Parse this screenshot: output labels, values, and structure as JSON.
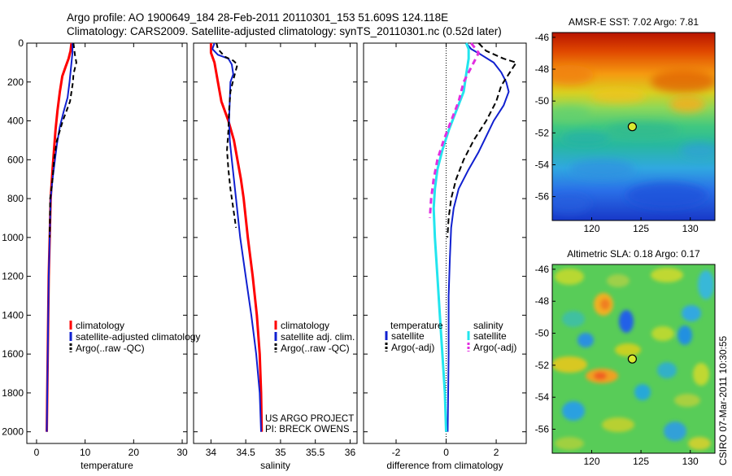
{
  "header": {
    "line1": "Argo profile: AO 1900649_184 28-Feb-2011 20110301_153 51.609S 124.118E",
    "line2": "Climatology: CARS2009. Satellite-adjusted climatology: synTS_20110301.nc (0.52d later)"
  },
  "credit": {
    "line1": "US ARGO PROJECT",
    "line2": "PI: BRECK OWENS"
  },
  "stamp": "CSIRO 07-Mar-2011 10:30:55",
  "colors": {
    "red": "#ff0000",
    "blue": "#1020d0",
    "black": "#000000",
    "cyan": "#22e5ee",
    "magenta": "#e22ee0"
  },
  "chart_data": [
    {
      "type": "line",
      "name": "temperature-profile",
      "xlabel": "temperature",
      "xlim": [
        -2,
        31
      ],
      "xticks": [
        0,
        10,
        20,
        30
      ],
      "ylim": [
        0,
        2060
      ],
      "yreversed": true,
      "yticks": [
        0,
        200,
        400,
        600,
        800,
        1000,
        1200,
        1400,
        1600,
        1800,
        2000
      ],
      "legend": [
        "climatology",
        "satellite-adjusted climatology",
        "Argo(..raw -QC)"
      ],
      "series": [
        {
          "name": "climatology",
          "color": "red",
          "dash": "",
          "width": 3,
          "points": [
            [
              7.2,
              0
            ],
            [
              7.0,
              40
            ],
            [
              6.6,
              80
            ],
            [
              6.0,
              120
            ],
            [
              5.3,
              170
            ],
            [
              4.8,
              250
            ],
            [
              4.3,
              350
            ],
            [
              3.9,
              450
            ],
            [
              3.6,
              550
            ],
            [
              3.3,
              650
            ],
            [
              2.9,
              800
            ],
            [
              2.7,
              1000
            ],
            [
              2.5,
              1200
            ],
            [
              2.4,
              1400
            ],
            [
              2.3,
              1600
            ],
            [
              2.2,
              1800
            ],
            [
              2.1,
              2000
            ]
          ]
        },
        {
          "name": "satellite-adjusted climatology",
          "color": "blue",
          "dash": "",
          "width": 2,
          "points": [
            [
              7.4,
              0
            ],
            [
              7.4,
              50
            ],
            [
              7.2,
              100
            ],
            [
              7.0,
              150
            ],
            [
              6.8,
              200
            ],
            [
              6.4,
              280
            ],
            [
              5.6,
              350
            ],
            [
              4.8,
              430
            ],
            [
              4.2,
              520
            ],
            [
              3.8,
              600
            ],
            [
              3.3,
              700
            ],
            [
              2.9,
              800
            ],
            [
              2.7,
              1000
            ],
            [
              2.5,
              1200
            ],
            [
              2.4,
              1400
            ],
            [
              2.3,
              1600
            ],
            [
              2.2,
              1800
            ],
            [
              2.1,
              2000
            ]
          ]
        },
        {
          "name": "Argo(..raw -QC)",
          "color": "black",
          "dash": "6,4",
          "width": 2,
          "points": [
            [
              7.6,
              0
            ],
            [
              7.7,
              20
            ],
            [
              7.9,
              60
            ],
            [
              8.2,
              100
            ],
            [
              7.8,
              140
            ],
            [
              7.6,
              160
            ],
            [
              7.5,
              200
            ],
            [
              7.2,
              250
            ],
            [
              6.9,
              300
            ],
            [
              5.4,
              400
            ],
            [
              4.2,
              500
            ],
            [
              3.6,
              600
            ],
            [
              3.3,
              700
            ],
            [
              2.8,
              800
            ],
            [
              2.7,
              1000
            ]
          ]
        }
      ]
    },
    {
      "type": "line",
      "name": "salinity-profile",
      "xlabel": "salinity",
      "xlim": [
        33.75,
        36.1
      ],
      "xticks": [
        34,
        34.5,
        35,
        35.5,
        36
      ],
      "ylim": [
        0,
        2060
      ],
      "yreversed": true,
      "legend": [
        "climatology",
        "satellite adj. clim.",
        "Argo(..raw -QC)"
      ],
      "credit": "US ARGO PROJECT PI: BRECK OWENS",
      "series": [
        {
          "name": "climatology",
          "color": "red",
          "dash": "",
          "width": 3,
          "points": [
            [
              34.0,
              0
            ],
            [
              34.0,
              50
            ],
            [
              34.05,
              100
            ],
            [
              34.1,
              200
            ],
            [
              34.15,
              300
            ],
            [
              34.25,
              400
            ],
            [
              34.33,
              500
            ],
            [
              34.38,
              600
            ],
            [
              34.43,
              700
            ],
            [
              34.47,
              800
            ],
            [
              34.53,
              1000
            ],
            [
              34.6,
              1200
            ],
            [
              34.66,
              1400
            ],
            [
              34.7,
              1600
            ],
            [
              34.72,
              1800
            ],
            [
              34.73,
              2000
            ]
          ]
        },
        {
          "name": "satellite adj. clim.",
          "color": "blue",
          "dash": "",
          "width": 2,
          "points": [
            [
              34.05,
              0
            ],
            [
              34.02,
              30
            ],
            [
              34.1,
              60
            ],
            [
              34.25,
              80
            ],
            [
              34.3,
              110
            ],
            [
              34.32,
              160
            ],
            [
              34.28,
              200
            ],
            [
              34.27,
              300
            ],
            [
              34.26,
              400
            ],
            [
              34.27,
              500
            ],
            [
              34.3,
              600
            ],
            [
              34.33,
              700
            ],
            [
              34.36,
              800
            ],
            [
              34.42,
              1000
            ],
            [
              34.5,
              1200
            ],
            [
              34.58,
              1400
            ],
            [
              34.65,
              1600
            ],
            [
              34.7,
              1800
            ],
            [
              34.72,
              2000
            ]
          ]
        },
        {
          "name": "Argo(..raw -QC)",
          "color": "black",
          "dash": "6,4",
          "width": 2,
          "points": [
            [
              34.08,
              0
            ],
            [
              34.1,
              30
            ],
            [
              34.2,
              70
            ],
            [
              34.32,
              90
            ],
            [
              34.38,
              110
            ],
            [
              34.35,
              150
            ],
            [
              34.32,
              190
            ],
            [
              34.28,
              250
            ],
            [
              34.26,
              350
            ],
            [
              34.25,
              450
            ],
            [
              34.23,
              550
            ],
            [
              34.25,
              650
            ],
            [
              34.28,
              750
            ],
            [
              34.32,
              850
            ],
            [
              34.36,
              950
            ]
          ]
        }
      ]
    },
    {
      "type": "line",
      "name": "difference-profile",
      "xlabel": "difference from climatology",
      "xlim": [
        -3.3,
        3.2
      ],
      "xticks": [
        -2,
        0,
        2
      ],
      "ylim": [
        0,
        2060
      ],
      "yreversed": true,
      "zero_line": true,
      "legend_groups": [
        {
          "title": "temperature",
          "items": [
            "satellite",
            "Argo(-adj)"
          ]
        },
        {
          "title": "salinity",
          "items": [
            "satellite",
            "Argo(-adj)"
          ]
        }
      ],
      "series": [
        {
          "name": "satellite",
          "group": "temperature",
          "color": "blue",
          "dash": "",
          "width": 2,
          "points": [
            [
              0.8,
              0
            ],
            [
              1.0,
              30
            ],
            [
              1.4,
              60
            ],
            [
              1.9,
              100
            ],
            [
              2.2,
              150
            ],
            [
              2.4,
              200
            ],
            [
              2.5,
              250
            ],
            [
              2.3,
              320
            ],
            [
              1.9,
              400
            ],
            [
              1.6,
              480
            ],
            [
              1.3,
              560
            ],
            [
              0.9,
              650
            ],
            [
              0.5,
              750
            ],
            [
              0.3,
              850
            ],
            [
              0.2,
              950
            ],
            [
              0.15,
              1100
            ],
            [
              0.1,
              1300
            ],
            [
              0.1,
              1600
            ],
            [
              0.08,
              1800
            ],
            [
              0.06,
              2000
            ]
          ]
        },
        {
          "name": "Argo(-adj)",
          "group": "temperature",
          "color": "black",
          "dash": "7,4",
          "width": 2,
          "points": [
            [
              1.3,
              0
            ],
            [
              1.6,
              40
            ],
            [
              2.3,
              80
            ],
            [
              2.8,
              100
            ],
            [
              2.6,
              140
            ],
            [
              2.2,
              220
            ],
            [
              2.0,
              300
            ],
            [
              1.6,
              400
            ],
            [
              1.1,
              500
            ],
            [
              0.7,
              600
            ],
            [
              0.4,
              700
            ],
            [
              0.2,
              800
            ],
            [
              0.1,
              900
            ],
            [
              0.05,
              1000
            ]
          ]
        },
        {
          "name": "satellite",
          "group": "salinity",
          "color": "cyan",
          "dash": "",
          "width": 3,
          "points": [
            [
              0.8,
              0
            ],
            [
              0.9,
              30
            ],
            [
              0.9,
              80
            ],
            [
              0.8,
              160
            ],
            [
              0.7,
              250
            ],
            [
              0.4,
              350
            ],
            [
              0.1,
              450
            ],
            [
              -0.15,
              550
            ],
            [
              -0.35,
              650
            ],
            [
              -0.45,
              750
            ],
            [
              -0.5,
              850
            ],
            [
              -0.45,
              1000
            ],
            [
              -0.35,
              1200
            ],
            [
              -0.25,
              1400
            ],
            [
              -0.15,
              1600
            ],
            [
              -0.05,
              1800
            ],
            [
              0.0,
              2000
            ]
          ]
        },
        {
          "name": "Argo(-adj)",
          "group": "salinity",
          "color": "magenta",
          "dash": "7,5",
          "width": 3,
          "points": [
            [
              1.0,
              0
            ],
            [
              1.3,
              50
            ],
            [
              1.1,
              100
            ],
            [
              0.9,
              150
            ],
            [
              0.7,
              200
            ],
            [
              0.5,
              300
            ],
            [
              0.2,
              400
            ],
            [
              -0.1,
              500
            ],
            [
              -0.35,
              600
            ],
            [
              -0.5,
              700
            ],
            [
              -0.6,
              800
            ],
            [
              -0.65,
              900
            ]
          ]
        }
      ]
    },
    {
      "type": "heatmap",
      "name": "sst-map",
      "title": "AMSR-E SST: 7.02 Argo: 7.81",
      "xlim": [
        116,
        132.5
      ],
      "ylim": [
        -57.5,
        -45.7
      ],
      "xticks": [
        120,
        125,
        130
      ],
      "yticks": [
        -46,
        -48,
        -50,
        -52,
        -54,
        -56
      ],
      "marker": [
        124.118,
        -51.609
      ]
    },
    {
      "type": "heatmap",
      "name": "sla-map",
      "title": "Altimetric SLA: 0.18 Argo: 0.17",
      "xlim": [
        116,
        132.5
      ],
      "ylim": [
        -57.5,
        -45.7
      ],
      "xticks": [
        120,
        125,
        130
      ],
      "yticks": [
        -46,
        -48,
        -50,
        -52,
        -54,
        -56
      ],
      "marker": [
        124.118,
        -51.609
      ]
    }
  ]
}
